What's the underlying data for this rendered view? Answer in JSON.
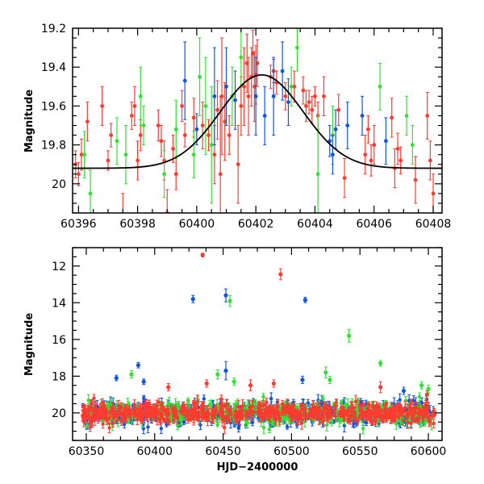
{
  "figure": {
    "shared_xlabel": "HJD−2400000"
  },
  "colors": {
    "red": "#ff3b30",
    "green": "#33e033",
    "blue": "#1155dd",
    "model": "#000000"
  },
  "chart_data": [
    {
      "type": "scatter",
      "panel": "top",
      "title": "",
      "xlabel": "",
      "ylabel": "Magnitude",
      "xlim": [
        60395.8,
        60408.3
      ],
      "ylim": [
        20.15,
        19.2
      ],
      "y_inverted": true,
      "xticks": [
        60396,
        60398,
        60400,
        60402,
        60404,
        60406,
        60408
      ],
      "yticks": [
        19.2,
        19.4,
        19.6,
        19.8,
        20
      ],
      "ytick_labels": [
        "19.2",
        "19.4",
        "19.6",
        "19.8",
        "20"
      ],
      "grid": false,
      "legend": "none",
      "model_curve": {
        "shape": "gaussian-dip",
        "baseline_mag": 19.92,
        "peak_mag": 19.44,
        "peak_x": 60402.2,
        "sigma_days": 1.4
      },
      "series": [
        {
          "color": "red",
          "points": [
            [
              60395.9,
              19.9,
              0.07
            ],
            [
              60396.0,
              19.95,
              0.06
            ],
            [
              60396.1,
              19.85,
              0.08
            ],
            [
              60396.3,
              19.68,
              0.1
            ],
            [
              60396.8,
              19.6,
              0.1
            ],
            [
              60397.0,
              19.88,
              0.05
            ],
            [
              60397.1,
              19.75,
              0.06
            ],
            [
              60397.5,
              20.2,
              0.15
            ],
            [
              60397.8,
              19.65,
              0.07
            ],
            [
              60397.9,
              19.6,
              0.1
            ],
            [
              60398.0,
              19.88,
              0.1
            ],
            [
              60398.1,
              19.75,
              0.08
            ],
            [
              60398.7,
              19.7,
              0.08
            ],
            [
              60398.8,
              19.78,
              0.08
            ],
            [
              60398.9,
              19.88,
              0.1
            ],
            [
              60399.0,
              20.15,
              0.12
            ],
            [
              60399.2,
              19.82,
              0.07
            ],
            [
              60399.3,
              19.95,
              0.08
            ],
            [
              60399.5,
              19.6,
              0.08
            ],
            [
              60399.6,
              19.75,
              0.06
            ],
            [
              60399.9,
              19.66,
              0.1
            ],
            [
              60400.2,
              19.7,
              0.12
            ],
            [
              60400.4,
              19.75,
              0.08
            ],
            [
              60400.6,
              19.85,
              0.15
            ],
            [
              60400.7,
              19.62,
              0.15
            ],
            [
              60400.8,
              19.95,
              0.4
            ],
            [
              60400.85,
              19.55,
              0.3
            ],
            [
              60400.95,
              19.68,
              0.2
            ],
            [
              60401.1,
              19.75,
              0.1
            ],
            [
              60401.4,
              19.9,
              0.2
            ],
            [
              60401.5,
              19.6,
              0.15
            ],
            [
              60401.6,
              19.5,
              0.2
            ],
            [
              60401.7,
              19.38,
              0.15
            ],
            [
              60401.75,
              19.55,
              0.2
            ],
            [
              60401.85,
              19.45,
              0.15
            ],
            [
              60401.9,
              19.33,
              0.12
            ],
            [
              60401.95,
              19.5,
              0.18
            ],
            [
              60402.0,
              19.44,
              0.15
            ],
            [
              60402.05,
              19.38,
              0.12
            ],
            [
              60402.5,
              19.45,
              0.06
            ],
            [
              60402.6,
              19.42,
              0.06
            ],
            [
              60402.7,
              19.48,
              0.06
            ],
            [
              60403.0,
              19.55,
              0.07
            ],
            [
              60403.3,
              19.5,
              0.08
            ],
            [
              60403.6,
              19.52,
              0.07
            ],
            [
              60403.7,
              19.6,
              0.08
            ],
            [
              60403.8,
              19.58,
              0.06
            ],
            [
              60403.9,
              19.62,
              0.07
            ],
            [
              60404.0,
              19.55,
              0.05
            ],
            [
              60404.1,
              19.65,
              0.07
            ],
            [
              60404.3,
              19.55,
              0.1
            ],
            [
              60404.8,
              19.62,
              0.08
            ],
            [
              60405.0,
              19.97,
              0.1
            ],
            [
              60405.7,
              19.85,
              0.1
            ],
            [
              60405.8,
              19.72,
              0.07
            ],
            [
              60405.9,
              19.88,
              0.08
            ],
            [
              60406.0,
              19.8,
              0.1
            ],
            [
              60406.6,
              19.66,
              0.1
            ],
            [
              60406.7,
              19.92,
              0.1
            ],
            [
              60406.8,
              19.82,
              0.08
            ],
            [
              60406.9,
              19.88,
              0.07
            ],
            [
              60407.4,
              19.98,
              0.12
            ],
            [
              60407.8,
              19.65,
              0.12
            ],
            [
              60407.9,
              19.88,
              0.1
            ],
            [
              60408.0,
              20.05,
              0.1
            ]
          ]
        },
        {
          "color": "green",
          "points": [
            [
              60396.2,
              19.85,
              0.12
            ],
            [
              60396.4,
              20.05,
              0.12
            ],
            [
              60397.3,
              19.78,
              0.12
            ],
            [
              60397.6,
              19.85,
              0.15
            ],
            [
              60398.1,
              19.55,
              0.15
            ],
            [
              60398.2,
              19.7,
              0.1
            ],
            [
              60398.9,
              19.95,
              0.12
            ],
            [
              60399.3,
              19.72,
              0.15
            ],
            [
              60399.9,
              19.85,
              0.12
            ],
            [
              60400.1,
              19.45,
              0.2
            ],
            [
              60400.3,
              19.6,
              0.25
            ],
            [
              60400.5,
              19.8,
              0.3
            ],
            [
              60401.2,
              19.55,
              0.15
            ],
            [
              60401.5,
              19.35,
              0.15
            ],
            [
              60403.2,
              19.5,
              0.1
            ],
            [
              60403.4,
              19.3,
              0.12
            ],
            [
              60404.1,
              19.95,
              0.3
            ],
            [
              60404.6,
              19.75,
              0.15
            ],
            [
              60406.2,
              19.5,
              0.12
            ],
            [
              60407.1,
              19.65,
              0.1
            ],
            [
              60407.3,
              19.8,
              0.1
            ]
          ]
        },
        {
          "color": "blue",
          "points": [
            [
              60399.6,
              19.47,
              0.2
            ],
            [
              60400.0,
              19.72,
              0.08
            ],
            [
              60400.6,
              19.55,
              0.25
            ],
            [
              60401.0,
              19.5,
              0.2
            ],
            [
              60401.3,
              19.57,
              0.15
            ],
            [
              60402.0,
              19.55,
              0.2
            ],
            [
              60402.3,
              19.65,
              0.15
            ],
            [
              60402.6,
              19.55,
              0.2
            ],
            [
              60402.9,
              19.42,
              0.15
            ],
            [
              60403.1,
              19.58,
              0.12
            ],
            [
              60404.5,
              19.78,
              0.08
            ],
            [
              60404.6,
              19.85,
              0.1
            ],
            [
              60404.7,
              19.72,
              0.1
            ],
            [
              60405.1,
              19.7,
              0.12
            ],
            [
              60405.6,
              19.65,
              0.1
            ],
            [
              60406.4,
              19.78,
              0.12
            ]
          ]
        }
      ]
    },
    {
      "type": "scatter",
      "panel": "bottom",
      "title": "",
      "xlabel": "HJD−2400000",
      "ylabel": "Magnitude",
      "xlim": [
        60340,
        60610
      ],
      "ylim": [
        21.5,
        11
      ],
      "y_inverted": true,
      "xticks": [
        60350,
        60400,
        60450,
        60500,
        60550,
        60600
      ],
      "yticks": [
        12,
        14,
        16,
        18,
        20
      ],
      "ytick_labels": [
        "12",
        "14",
        "16",
        "18",
        "20"
      ],
      "grid": false,
      "legend": "none",
      "band": {
        "x_range": [
          60347,
          60605
        ],
        "center_mag": 20.0,
        "scatter_mag": 0.4,
        "points_per_color": 420
      },
      "outliers": [
        {
          "color": "red",
          "x": 60435,
          "y": 11.4,
          "err": 0.1
        },
        {
          "color": "red",
          "x": 60492,
          "y": 12.45,
          "err": 0.3
        },
        {
          "color": "blue",
          "x": 60428,
          "y": 13.8,
          "err": 0.2
        },
        {
          "color": "blue",
          "x": 60452,
          "y": 13.6,
          "err": 0.35
        },
        {
          "color": "blue",
          "x": 60510,
          "y": 13.85,
          "err": 0.15
        },
        {
          "color": "green",
          "x": 60455,
          "y": 13.9,
          "err": 0.3
        },
        {
          "color": "green",
          "x": 60542,
          "y": 15.8,
          "err": 0.35
        },
        {
          "color": "green",
          "x": 60525,
          "y": 17.8,
          "err": 0.3
        },
        {
          "color": "green",
          "x": 60528,
          "y": 18.2,
          "err": 0.2
        },
        {
          "color": "green",
          "x": 60383,
          "y": 17.9,
          "err": 0.2
        },
        {
          "color": "green",
          "x": 60446,
          "y": 17.9,
          "err": 0.25
        },
        {
          "color": "green",
          "x": 60458,
          "y": 18.3,
          "err": 0.2
        },
        {
          "color": "green",
          "x": 60565,
          "y": 17.3,
          "err": 0.15
        },
        {
          "color": "green",
          "x": 60595,
          "y": 18.5,
          "err": 0.2
        },
        {
          "color": "green",
          "x": 60600,
          "y": 18.7,
          "err": 0.2
        },
        {
          "color": "blue",
          "x": 60372,
          "y": 18.1,
          "err": 0.15
        },
        {
          "color": "blue",
          "x": 60388,
          "y": 17.4,
          "err": 0.15
        },
        {
          "color": "blue",
          "x": 60392,
          "y": 18.3,
          "err": 0.15
        },
        {
          "color": "blue",
          "x": 60452,
          "y": 17.7,
          "err": 0.5
        },
        {
          "color": "blue",
          "x": 60508,
          "y": 18.2,
          "err": 0.2
        },
        {
          "color": "blue",
          "x": 60582,
          "y": 18.8,
          "err": 0.2
        },
        {
          "color": "red",
          "x": 60410,
          "y": 18.6,
          "err": 0.2
        },
        {
          "color": "red",
          "x": 60438,
          "y": 18.4,
          "err": 0.2
        },
        {
          "color": "red",
          "x": 60470,
          "y": 18.5,
          "err": 0.3
        },
        {
          "color": "red",
          "x": 60487,
          "y": 18.4,
          "err": 0.2
        },
        {
          "color": "red",
          "x": 60565,
          "y": 18.6,
          "err": 0.3
        },
        {
          "color": "red",
          "x": 60599,
          "y": 19.0,
          "err": 0.2
        }
      ]
    }
  ]
}
